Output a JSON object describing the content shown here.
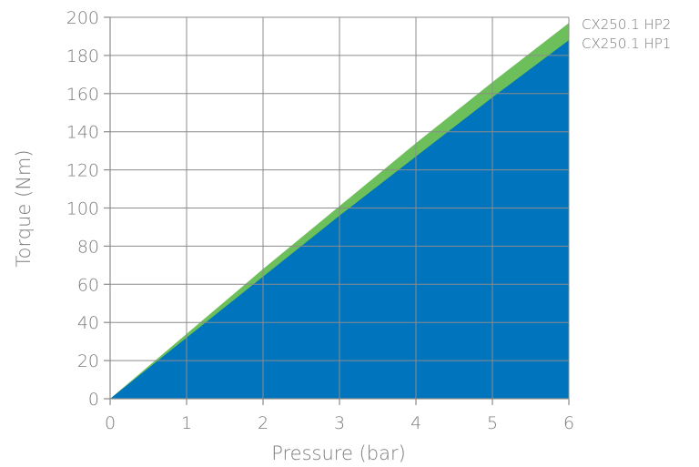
{
  "chart_data": {
    "type": "area",
    "title": "",
    "xlabel": "Pressure (bar)",
    "ylabel": "Torque (Nm)",
    "xlim": [
      0,
      6
    ],
    "ylim": [
      0,
      200
    ],
    "x_ticks": [
      0,
      1,
      2,
      3,
      4,
      5,
      6
    ],
    "y_ticks": [
      0,
      20,
      40,
      60,
      80,
      100,
      120,
      140,
      160,
      180,
      200
    ],
    "grid": true,
    "legend": "right, labels at series ends",
    "x": [
      0,
      1,
      2,
      3,
      4,
      5,
      6
    ],
    "series": [
      {
        "name": "CX250.1 HP2",
        "color": "#6cbf5a",
        "values": [
          0,
          34,
          68,
          101,
          134,
          166,
          197
        ]
      },
      {
        "name": "CX250.1 HP1",
        "color": "#0074bd",
        "values": [
          0,
          32,
          64,
          96,
          127,
          158,
          188
        ]
      }
    ]
  }
}
